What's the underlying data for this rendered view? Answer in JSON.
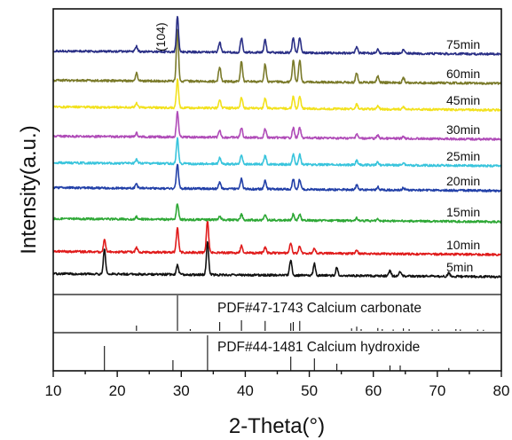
{
  "chart_data": {
    "type": "line",
    "title": "",
    "xlabel": "2-Theta(°)",
    "ylabel": "Intensity(a.u.)",
    "xlim": [
      10,
      80
    ],
    "x_ticks": [
      10,
      20,
      30,
      40,
      50,
      60,
      70,
      80
    ],
    "y_ticks_shown": false,
    "peak_annotation": {
      "label": "(104)",
      "x": 29.4
    },
    "series": [
      {
        "name": "5min",
        "color": "#111111",
        "peaks": [
          [
            18.0,
            0.75
          ],
          [
            29.4,
            0.3
          ],
          [
            34.1,
            1.0
          ],
          [
            47.1,
            0.45
          ],
          [
            50.8,
            0.35
          ],
          [
            54.3,
            0.25
          ],
          [
            62.6,
            0.15
          ],
          [
            64.2,
            0.14
          ],
          [
            71.8,
            0.1
          ]
        ]
      },
      {
        "name": "10min",
        "color": "#e01b1b",
        "peaks": [
          [
            18.0,
            0.35
          ],
          [
            23.0,
            0.12
          ],
          [
            29.4,
            0.7
          ],
          [
            34.1,
            0.9
          ],
          [
            39.4,
            0.2
          ],
          [
            43.1,
            0.15
          ],
          [
            47.1,
            0.3
          ],
          [
            48.5,
            0.2
          ],
          [
            50.8,
            0.15
          ],
          [
            57.4,
            0.1
          ]
        ]
      },
      {
        "name": "15min",
        "color": "#2ea836",
        "peaks": [
          [
            23.0,
            0.15
          ],
          [
            29.4,
            1.0
          ],
          [
            36.0,
            0.25
          ],
          [
            39.4,
            0.35
          ],
          [
            43.1,
            0.3
          ],
          [
            47.5,
            0.4
          ],
          [
            48.5,
            0.4
          ],
          [
            57.4,
            0.18
          ],
          [
            60.7,
            0.12
          ]
        ]
      },
      {
        "name": "20min",
        "color": "#2240a8",
        "peaks": [
          [
            23.0,
            0.15
          ],
          [
            29.4,
            1.0
          ],
          [
            36.0,
            0.25
          ],
          [
            39.4,
            0.4
          ],
          [
            43.1,
            0.35
          ],
          [
            47.5,
            0.4
          ],
          [
            48.5,
            0.4
          ],
          [
            57.4,
            0.18
          ],
          [
            60.7,
            0.12
          ],
          [
            64.7,
            0.1
          ]
        ]
      },
      {
        "name": "25min",
        "color": "#38c4dc",
        "peaks": [
          [
            23.0,
            0.15
          ],
          [
            29.4,
            1.0
          ],
          [
            36.0,
            0.25
          ],
          [
            39.4,
            0.4
          ],
          [
            43.1,
            0.35
          ],
          [
            47.5,
            0.4
          ],
          [
            48.5,
            0.4
          ],
          [
            57.4,
            0.18
          ],
          [
            60.7,
            0.12
          ],
          [
            64.7,
            0.1
          ]
        ]
      },
      {
        "name": "30min",
        "color": "#b04cb8",
        "peaks": [
          [
            23.0,
            0.15
          ],
          [
            29.4,
            1.0
          ],
          [
            36.0,
            0.25
          ],
          [
            39.4,
            0.4
          ],
          [
            43.1,
            0.35
          ],
          [
            47.5,
            0.4
          ],
          [
            48.5,
            0.4
          ],
          [
            57.4,
            0.18
          ],
          [
            60.7,
            0.12
          ],
          [
            64.7,
            0.1
          ]
        ]
      },
      {
        "name": "45min",
        "color": "#f2e11c",
        "peaks": [
          [
            23.0,
            0.15
          ],
          [
            29.4,
            1.0
          ],
          [
            36.0,
            0.28
          ],
          [
            39.4,
            0.4
          ],
          [
            43.1,
            0.35
          ],
          [
            47.5,
            0.42
          ],
          [
            48.5,
            0.42
          ],
          [
            57.4,
            0.18
          ],
          [
            60.7,
            0.12
          ],
          [
            64.7,
            0.1
          ]
        ]
      },
      {
        "name": "60min",
        "color": "#7a7a2a",
        "peaks": [
          [
            23.0,
            0.15
          ],
          [
            29.4,
            1.0
          ],
          [
            36.0,
            0.28
          ],
          [
            39.4,
            0.4
          ],
          [
            43.1,
            0.35
          ],
          [
            47.5,
            0.42
          ],
          [
            48.5,
            0.42
          ],
          [
            57.4,
            0.18
          ],
          [
            60.7,
            0.12
          ],
          [
            64.7,
            0.1
          ]
        ]
      },
      {
        "name": "75min",
        "color": "#2a2f86",
        "peaks": [
          [
            23.0,
            0.15
          ],
          [
            29.4,
            1.0
          ],
          [
            36.0,
            0.28
          ],
          [
            39.4,
            0.4
          ],
          [
            43.1,
            0.35
          ],
          [
            47.5,
            0.42
          ],
          [
            48.5,
            0.42
          ],
          [
            57.4,
            0.18
          ],
          [
            60.7,
            0.12
          ],
          [
            64.7,
            0.1
          ]
        ]
      }
    ],
    "reference_patterns": [
      {
        "label": "PDF#47-1743 Calcium carbonate",
        "sticks": [
          [
            23.0,
            0.15
          ],
          [
            29.4,
            1.0
          ],
          [
            31.4,
            0.05
          ],
          [
            36.0,
            0.25
          ],
          [
            39.4,
            0.3
          ],
          [
            43.1,
            0.28
          ],
          [
            47.1,
            0.22
          ],
          [
            47.5,
            0.25
          ],
          [
            48.5,
            0.28
          ],
          [
            56.6,
            0.07
          ],
          [
            57.4,
            0.12
          ],
          [
            58.1,
            0.05
          ],
          [
            60.7,
            0.08
          ],
          [
            61.4,
            0.05
          ],
          [
            63.1,
            0.04
          ],
          [
            64.7,
            0.07
          ],
          [
            65.6,
            0.05
          ],
          [
            69.2,
            0.04
          ],
          [
            70.2,
            0.04
          ],
          [
            72.9,
            0.05
          ],
          [
            73.6,
            0.04
          ],
          [
            76.3,
            0.04
          ],
          [
            77.2,
            0.03
          ]
        ]
      },
      {
        "label": "PDF#44-1481 Calcium hydroxide",
        "sticks": [
          [
            18.0,
            0.7
          ],
          [
            28.7,
            0.3
          ],
          [
            34.1,
            1.0
          ],
          [
            47.1,
            0.4
          ],
          [
            50.8,
            0.35
          ],
          [
            54.3,
            0.2
          ],
          [
            62.6,
            0.15
          ],
          [
            64.2,
            0.15
          ],
          [
            71.8,
            0.08
          ]
        ]
      }
    ]
  }
}
